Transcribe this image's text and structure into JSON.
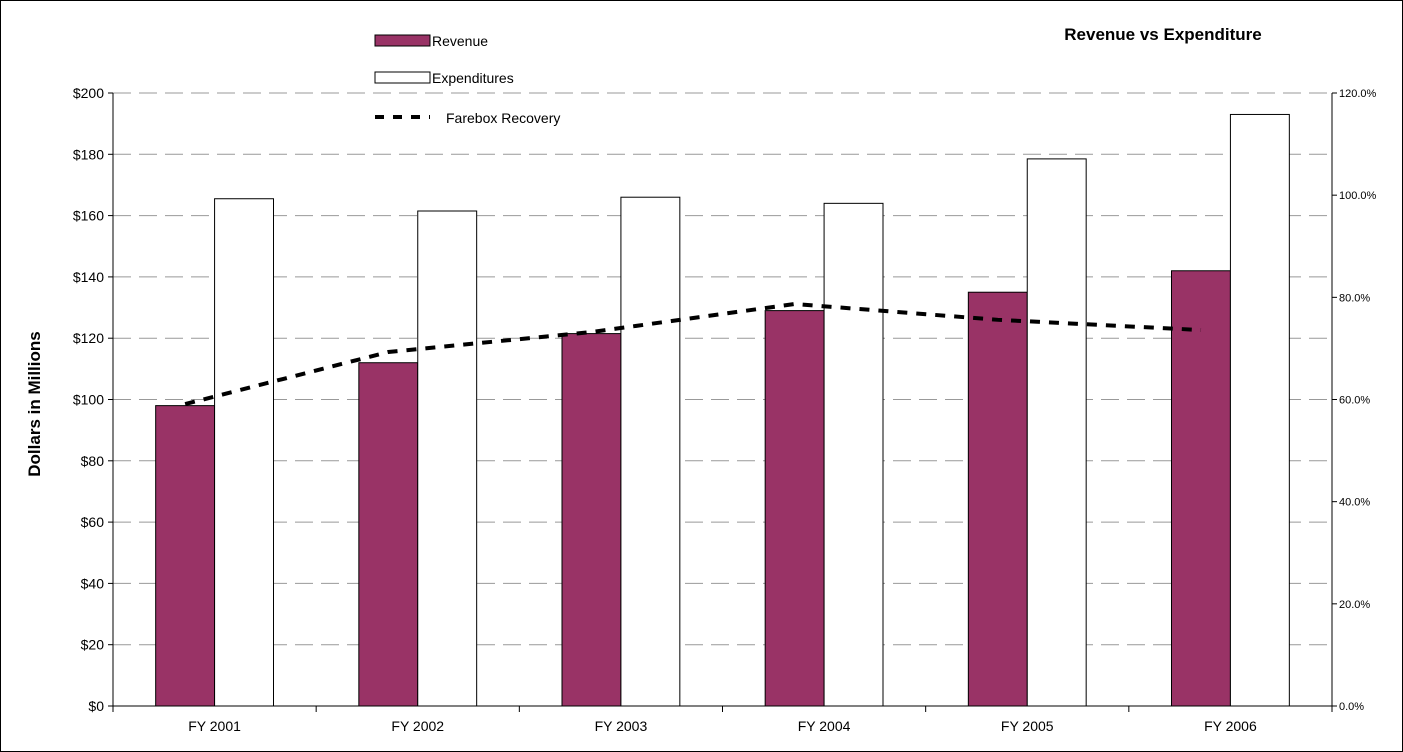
{
  "chart_data": {
    "type": "bar",
    "title": "Revenue vs Expenditure",
    "ylabel": "Dollars in Millions",
    "xlabel": "",
    "categories": [
      "FY 2001",
      "FY 2002",
      "FY 2003",
      "FY 2004",
      "FY 2005",
      "FY 2006"
    ],
    "ylim": [
      0,
      200
    ],
    "y_ticks": [
      "$0",
      "$20",
      "$40",
      "$60",
      "$80",
      "$100",
      "$120",
      "$140",
      "$160",
      "$180",
      "$200"
    ],
    "y2lim": [
      0,
      120
    ],
    "y2_ticks": [
      "0.0%",
      "20.0%",
      "40.0%",
      "60.0%",
      "80.0%",
      "100.0%",
      "120.0%"
    ],
    "grid": true,
    "legend_position": "top-left",
    "series": [
      {
        "name": "Revenue",
        "type": "bar",
        "axis": "left",
        "color": "#993366",
        "values": [
          98,
          112,
          121.5,
          129,
          135,
          142
        ]
      },
      {
        "name": "Expenditures",
        "type": "bar",
        "axis": "left",
        "color": "#ffffff",
        "values": [
          165.5,
          161.5,
          166,
          164,
          178.5,
          193
        ]
      },
      {
        "name": "Farebox Recovery",
        "type": "line",
        "axis": "right",
        "style": "dashed",
        "color": "#000000",
        "values": [
          59.1,
          69.3,
          73.2,
          78.7,
          75.6,
          73.6
        ]
      }
    ]
  }
}
